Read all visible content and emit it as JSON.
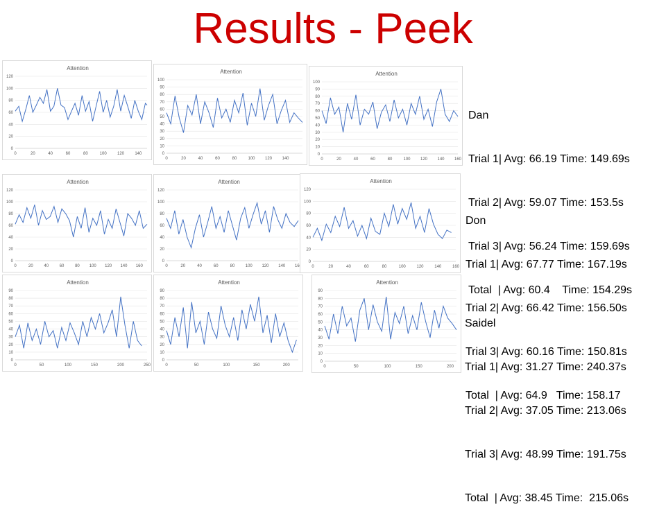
{
  "title": "Results - Peek",
  "people": [
    {
      "name": "Dan",
      "lines": [
        "Trial 1| Avg: 66.19 Time: 149.69s",
        "Trial 2| Avg: 59.07 Time: 153.5s",
        "Trial 3| Avg: 56.24 Time: 159.69s",
        "Total  | Avg: 60.4    Time: 154.29s"
      ]
    },
    {
      "name": "Don",
      "lines": [
        "Trial 1| Avg: 67.77 Time: 167.19s",
        "Trial 2| Avg: 66.42 Time: 156.50s",
        "Trial 3| Avg: 60.16 Time: 150.81s",
        "Total  | Avg: 64.9   Time: 158.17"
      ]
    },
    {
      "name": "Saidel",
      "lines": [
        "Trial 1| Avg: 31.27 Time: 240.37s",
        "Trial 2| Avg: 37.05 Time: 213.06s",
        "Trial 3| Avg: 48.99 Time: 191.75s",
        "Total  | Avg: 38.45 Time:  215.06s"
      ]
    }
  ],
  "chart_data": [
    {
      "type": "line",
      "title": "Attention",
      "xlim": [
        0,
        150
      ],
      "ylim": [
        0,
        120
      ],
      "xticks": [
        0,
        20,
        40,
        60,
        80,
        100,
        120,
        140
      ],
      "yticks": [
        0,
        20,
        40,
        60,
        80,
        100,
        120
      ],
      "grid": true,
      "color": "#4472c4",
      "x": [
        0,
        4,
        8,
        12,
        16,
        20,
        24,
        28,
        32,
        36,
        40,
        44,
        48,
        52,
        56,
        60,
        64,
        68,
        72,
        76,
        80,
        84,
        88,
        92,
        96,
        100,
        104,
        108,
        112,
        116,
        120,
        124,
        128,
        132,
        136,
        140,
        144,
        148,
        150
      ],
      "y": [
        62,
        70,
        45,
        65,
        88,
        60,
        72,
        85,
        75,
        98,
        62,
        70,
        100,
        72,
        68,
        48,
        62,
        75,
        55,
        88,
        62,
        78,
        45,
        70,
        95,
        60,
        80,
        52,
        70,
        98,
        62,
        88,
        70,
        50,
        80,
        62,
        48,
        75,
        72
      ]
    },
    {
      "type": "line",
      "title": "Attention",
      "xlim": [
        0,
        160
      ],
      "ylim": [
        0,
        100
      ],
      "xticks": [
        0,
        20,
        40,
        60,
        80,
        100,
        120,
        140
      ],
      "yticks": [
        0,
        10,
        20,
        30,
        40,
        50,
        60,
        70,
        80,
        90,
        100
      ],
      "grid": true,
      "color": "#4472c4",
      "x": [
        0,
        5,
        10,
        15,
        20,
        25,
        30,
        35,
        40,
        45,
        50,
        55,
        60,
        65,
        70,
        75,
        80,
        85,
        90,
        95,
        100,
        105,
        110,
        115,
        120,
        125,
        130,
        135,
        140,
        145,
        150,
        155,
        160
      ],
      "y": [
        55,
        40,
        78,
        48,
        28,
        65,
        52,
        80,
        40,
        70,
        55,
        35,
        75,
        48,
        60,
        42,
        72,
        55,
        82,
        38,
        68,
        50,
        88,
        45,
        65,
        80,
        40,
        58,
        72,
        42,
        55,
        48,
        42
      ]
    },
    {
      "type": "line",
      "title": "Attention",
      "xlim": [
        0,
        160
      ],
      "ylim": [
        0,
        100
      ],
      "xticks": [
        0,
        20,
        40,
        60,
        80,
        100,
        120,
        140,
        160
      ],
      "yticks": [
        0,
        10,
        20,
        30,
        40,
        50,
        60,
        70,
        80,
        90,
        100
      ],
      "grid": true,
      "color": "#4472c4",
      "x": [
        0,
        5,
        10,
        15,
        20,
        25,
        30,
        35,
        40,
        45,
        50,
        55,
        60,
        65,
        70,
        75,
        80,
        85,
        90,
        95,
        100,
        105,
        110,
        115,
        120,
        125,
        130,
        135,
        140,
        145,
        150,
        155,
        160
      ],
      "y": [
        60,
        42,
        78,
        55,
        65,
        30,
        70,
        48,
        82,
        40,
        62,
        55,
        72,
        35,
        58,
        68,
        45,
        75,
        50,
        62,
        40,
        70,
        55,
        80,
        48,
        62,
        38,
        72,
        90,
        55,
        45,
        60,
        52
      ]
    },
    {
      "type": "line",
      "title": "Attention",
      "xlim": [
        0,
        170
      ],
      "ylim": [
        0,
        120
      ],
      "xticks": [
        0,
        20,
        40,
        60,
        80,
        100,
        120,
        140,
        160
      ],
      "yticks": [
        0,
        20,
        40,
        60,
        80,
        100,
        120
      ],
      "grid": true,
      "color": "#4472c4",
      "x": [
        0,
        5,
        10,
        15,
        20,
        25,
        30,
        35,
        40,
        45,
        50,
        55,
        60,
        65,
        70,
        75,
        80,
        85,
        90,
        95,
        100,
        105,
        110,
        115,
        120,
        125,
        130,
        135,
        140,
        145,
        150,
        155,
        160,
        165,
        170
      ],
      "y": [
        62,
        78,
        65,
        90,
        72,
        95,
        60,
        85,
        70,
        75,
        92,
        65,
        88,
        80,
        68,
        40,
        75,
        55,
        90,
        48,
        72,
        60,
        85,
        45,
        70,
        55,
        88,
        65,
        42,
        80,
        72,
        60,
        85,
        55,
        62
      ]
    },
    {
      "type": "line",
      "title": "Attention",
      "xlim": [
        0,
        160
      ],
      "ylim": [
        0,
        120
      ],
      "xticks": [
        0,
        20,
        40,
        60,
        80,
        100,
        120,
        140,
        160
      ],
      "yticks": [
        0,
        20,
        40,
        60,
        80,
        100,
        120
      ],
      "grid": true,
      "color": "#4472c4",
      "x": [
        0,
        5,
        10,
        15,
        20,
        25,
        30,
        35,
        40,
        45,
        50,
        55,
        60,
        65,
        70,
        75,
        80,
        85,
        90,
        95,
        100,
        105,
        110,
        115,
        120,
        125,
        130,
        135,
        140,
        145,
        150,
        155,
        160
      ],
      "y": [
        72,
        55,
        85,
        45,
        70,
        40,
        22,
        55,
        78,
        40,
        65,
        92,
        55,
        75,
        48,
        85,
        60,
        35,
        72,
        90,
        55,
        78,
        98,
        62,
        85,
        48,
        92,
        70,
        55,
        80,
        65,
        58,
        68
      ]
    },
    {
      "type": "line",
      "title": "Attention",
      "xlim": [
        0,
        160
      ],
      "ylim": [
        0,
        120
      ],
      "xticks": [
        0,
        20,
        40,
        60,
        80,
        100,
        120,
        140,
        160
      ],
      "yticks": [
        0,
        20,
        40,
        60,
        80,
        100,
        120
      ],
      "grid": true,
      "color": "#4472c4",
      "x": [
        0,
        5,
        10,
        15,
        20,
        25,
        30,
        35,
        40,
        45,
        50,
        55,
        60,
        65,
        70,
        75,
        80,
        85,
        90,
        95,
        100,
        105,
        110,
        115,
        120,
        125,
        130,
        135,
        140,
        145,
        150,
        155
      ],
      "y": [
        40,
        55,
        35,
        62,
        48,
        75,
        58,
        90,
        55,
        68,
        42,
        60,
        38,
        72,
        50,
        45,
        80,
        58,
        95,
        62,
        88,
        70,
        98,
        55,
        75,
        48,
        88,
        62,
        45,
        38,
        52,
        48
      ]
    },
    {
      "type": "line",
      "title": "Attention",
      "xlim": [
        0,
        250
      ],
      "ylim": [
        0,
        90
      ],
      "xticks": [
        0,
        50,
        100,
        150,
        200,
        250
      ],
      "yticks": [
        0,
        10,
        20,
        30,
        40,
        50,
        60,
        70,
        80,
        90
      ],
      "grid": true,
      "color": "#4472c4",
      "x": [
        0,
        8,
        16,
        24,
        32,
        40,
        48,
        56,
        64,
        72,
        80,
        88,
        96,
        104,
        112,
        120,
        128,
        136,
        144,
        152,
        160,
        168,
        176,
        184,
        192,
        200,
        208,
        216,
        224,
        232,
        240
      ],
      "y": [
        30,
        45,
        15,
        48,
        25,
        40,
        20,
        50,
        30,
        38,
        15,
        42,
        25,
        48,
        35,
        20,
        50,
        30,
        55,
        40,
        60,
        35,
        48,
        65,
        30,
        82,
        45,
        15,
        50,
        25,
        18
      ]
    },
    {
      "type": "line",
      "title": "Attention",
      "xlim": [
        0,
        220
      ],
      "ylim": [
        0,
        90
      ],
      "xticks": [
        0,
        50,
        100,
        150,
        200
      ],
      "yticks": [
        0,
        10,
        20,
        30,
        40,
        50,
        60,
        70,
        80,
        90
      ],
      "grid": true,
      "color": "#4472c4",
      "x": [
        0,
        7,
        14,
        21,
        28,
        35,
        42,
        49,
        56,
        63,
        70,
        77,
        84,
        91,
        98,
        105,
        112,
        119,
        126,
        133,
        140,
        147,
        154,
        161,
        168,
        175,
        182,
        189,
        196,
        203,
        210,
        217
      ],
      "y": [
        38,
        20,
        55,
        30,
        68,
        15,
        75,
        35,
        50,
        20,
        62,
        40,
        28,
        70,
        45,
        30,
        55,
        25,
        65,
        40,
        72,
        50,
        82,
        35,
        58,
        22,
        60,
        30,
        48,
        25,
        10,
        26
      ]
    },
    {
      "type": "line",
      "title": "Attention",
      "xlim": [
        0,
        210
      ],
      "ylim": [
        0,
        90
      ],
      "xticks": [
        0,
        50,
        100,
        150,
        200
      ],
      "yticks": [
        0,
        10,
        20,
        30,
        40,
        50,
        60,
        70,
        80,
        90
      ],
      "grid": true,
      "color": "#4472c4",
      "x": [
        0,
        7,
        14,
        21,
        28,
        35,
        42,
        49,
        56,
        63,
        70,
        77,
        84,
        91,
        98,
        105,
        112,
        119,
        126,
        133,
        140,
        147,
        154,
        161,
        168,
        175,
        182,
        189,
        196,
        203,
        210
      ],
      "y": [
        45,
        28,
        60,
        35,
        70,
        45,
        55,
        25,
        65,
        80,
        40,
        72,
        50,
        38,
        82,
        28,
        62,
        48,
        70,
        35,
        58,
        40,
        75,
        50,
        30,
        65,
        42,
        70,
        55,
        48,
        40
      ]
    }
  ]
}
